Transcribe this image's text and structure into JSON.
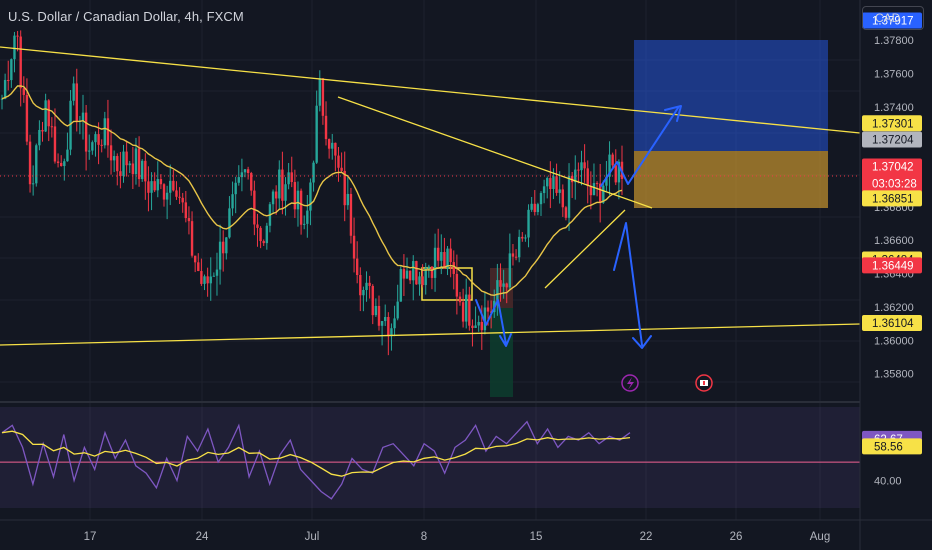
{
  "header": {
    "title": "U.S. Dollar / Canadian Dollar, 4h, FXCM",
    "currency": "CAD"
  },
  "colors": {
    "up": "#26a69a",
    "down": "#f23645",
    "trend": "#f7e147",
    "arrow": "#2962ff",
    "rsi": "#7e57c2",
    "bg": "#131722"
  },
  "chart_data": {
    "type": "candlestick",
    "price_axis": {
      "range": [
        1.3566,
        1.3804
      ],
      "ticks": [
        "1.37800",
        "1.37600",
        "1.37400",
        "1.37200",
        "1.37000",
        "1.36800",
        "1.36600",
        "1.36400",
        "1.36200",
        "1.36000",
        "1.35800"
      ]
    },
    "time_axis": {
      "labels": [
        "17",
        "24",
        "Jul",
        "8",
        "15",
        "22",
        "26",
        "Aug"
      ]
    },
    "close_path": [
      1.3745,
      1.379,
      1.369,
      1.3745,
      1.37,
      1.3745,
      1.3715,
      1.3725,
      1.3705,
      1.371,
      1.3695,
      1.369,
      1.37,
      1.366,
      1.363,
      1.365,
      1.368,
      1.37,
      1.366,
      1.369,
      1.37,
      1.366,
      1.375,
      1.371,
      1.368,
      1.363,
      1.362,
      1.361,
      1.365,
      1.364,
      1.365,
      1.3645,
      1.362,
      1.3615,
      1.362,
      1.364,
      1.3655,
      1.368,
      1.369,
      1.368,
      1.3705,
      1.3685,
      1.37,
      1.3704
    ],
    "price_labels": [
      {
        "text": "1.37917",
        "bg": "#2962ff",
        "fg": "#ffffff",
        "price": 1.37917
      },
      {
        "text": "1.37301",
        "bg": "#f7e147",
        "fg": "#131722",
        "price": 1.37301
      },
      {
        "text": "1.37204",
        "bg": "#b2b5be",
        "fg": "#131722",
        "price": 1.37204
      },
      {
        "text": "1.37042",
        "bg": "#f23645",
        "fg": "#ffffff",
        "price": 1.37042,
        "countdown": "03:03:28"
      },
      {
        "text": "1.36851",
        "bg": "#f7e147",
        "fg": "#131722",
        "price": 1.36851
      },
      {
        "text": "1.36484",
        "bg": "#f7e147",
        "fg": "#131722",
        "price": 1.36484
      },
      {
        "text": "1.36449",
        "bg": "#f23645",
        "fg": "#ffffff",
        "price": 1.36449
      },
      {
        "text": "1.36104",
        "bg": "#f7e147",
        "fg": "#131722",
        "price": 1.36104
      }
    ],
    "rsi": {
      "range": [
        25,
        80
      ],
      "tick": "40.00",
      "level": 50,
      "labels": [
        {
          "text": "62.67",
          "bg": "#7e57c2",
          "fg": "#ffffff",
          "value": 62.67
        },
        {
          "text": "58.56",
          "bg": "#f7e147",
          "fg": "#131722",
          "value": 58.56
        }
      ],
      "values": [
        66,
        70,
        58,
        38,
        60,
        42,
        65,
        40,
        58,
        46,
        66,
        52,
        62,
        48,
        44,
        36,
        52,
        40,
        64,
        56,
        68,
        50,
        58,
        70,
        42,
        56,
        38,
        54,
        62,
        46,
        40,
        34,
        30,
        38,
        52,
        46,
        44,
        58,
        60,
        54,
        48,
        60,
        56,
        44,
        58,
        62,
        70,
        56,
        64,
        60,
        66,
        72,
        60,
        68,
        58,
        64,
        62,
        66,
        60,
        64,
        62,
        66
      ]
    }
  },
  "icons": {
    "flash": "lightning-icon",
    "flag": "canada-flag-icon"
  }
}
